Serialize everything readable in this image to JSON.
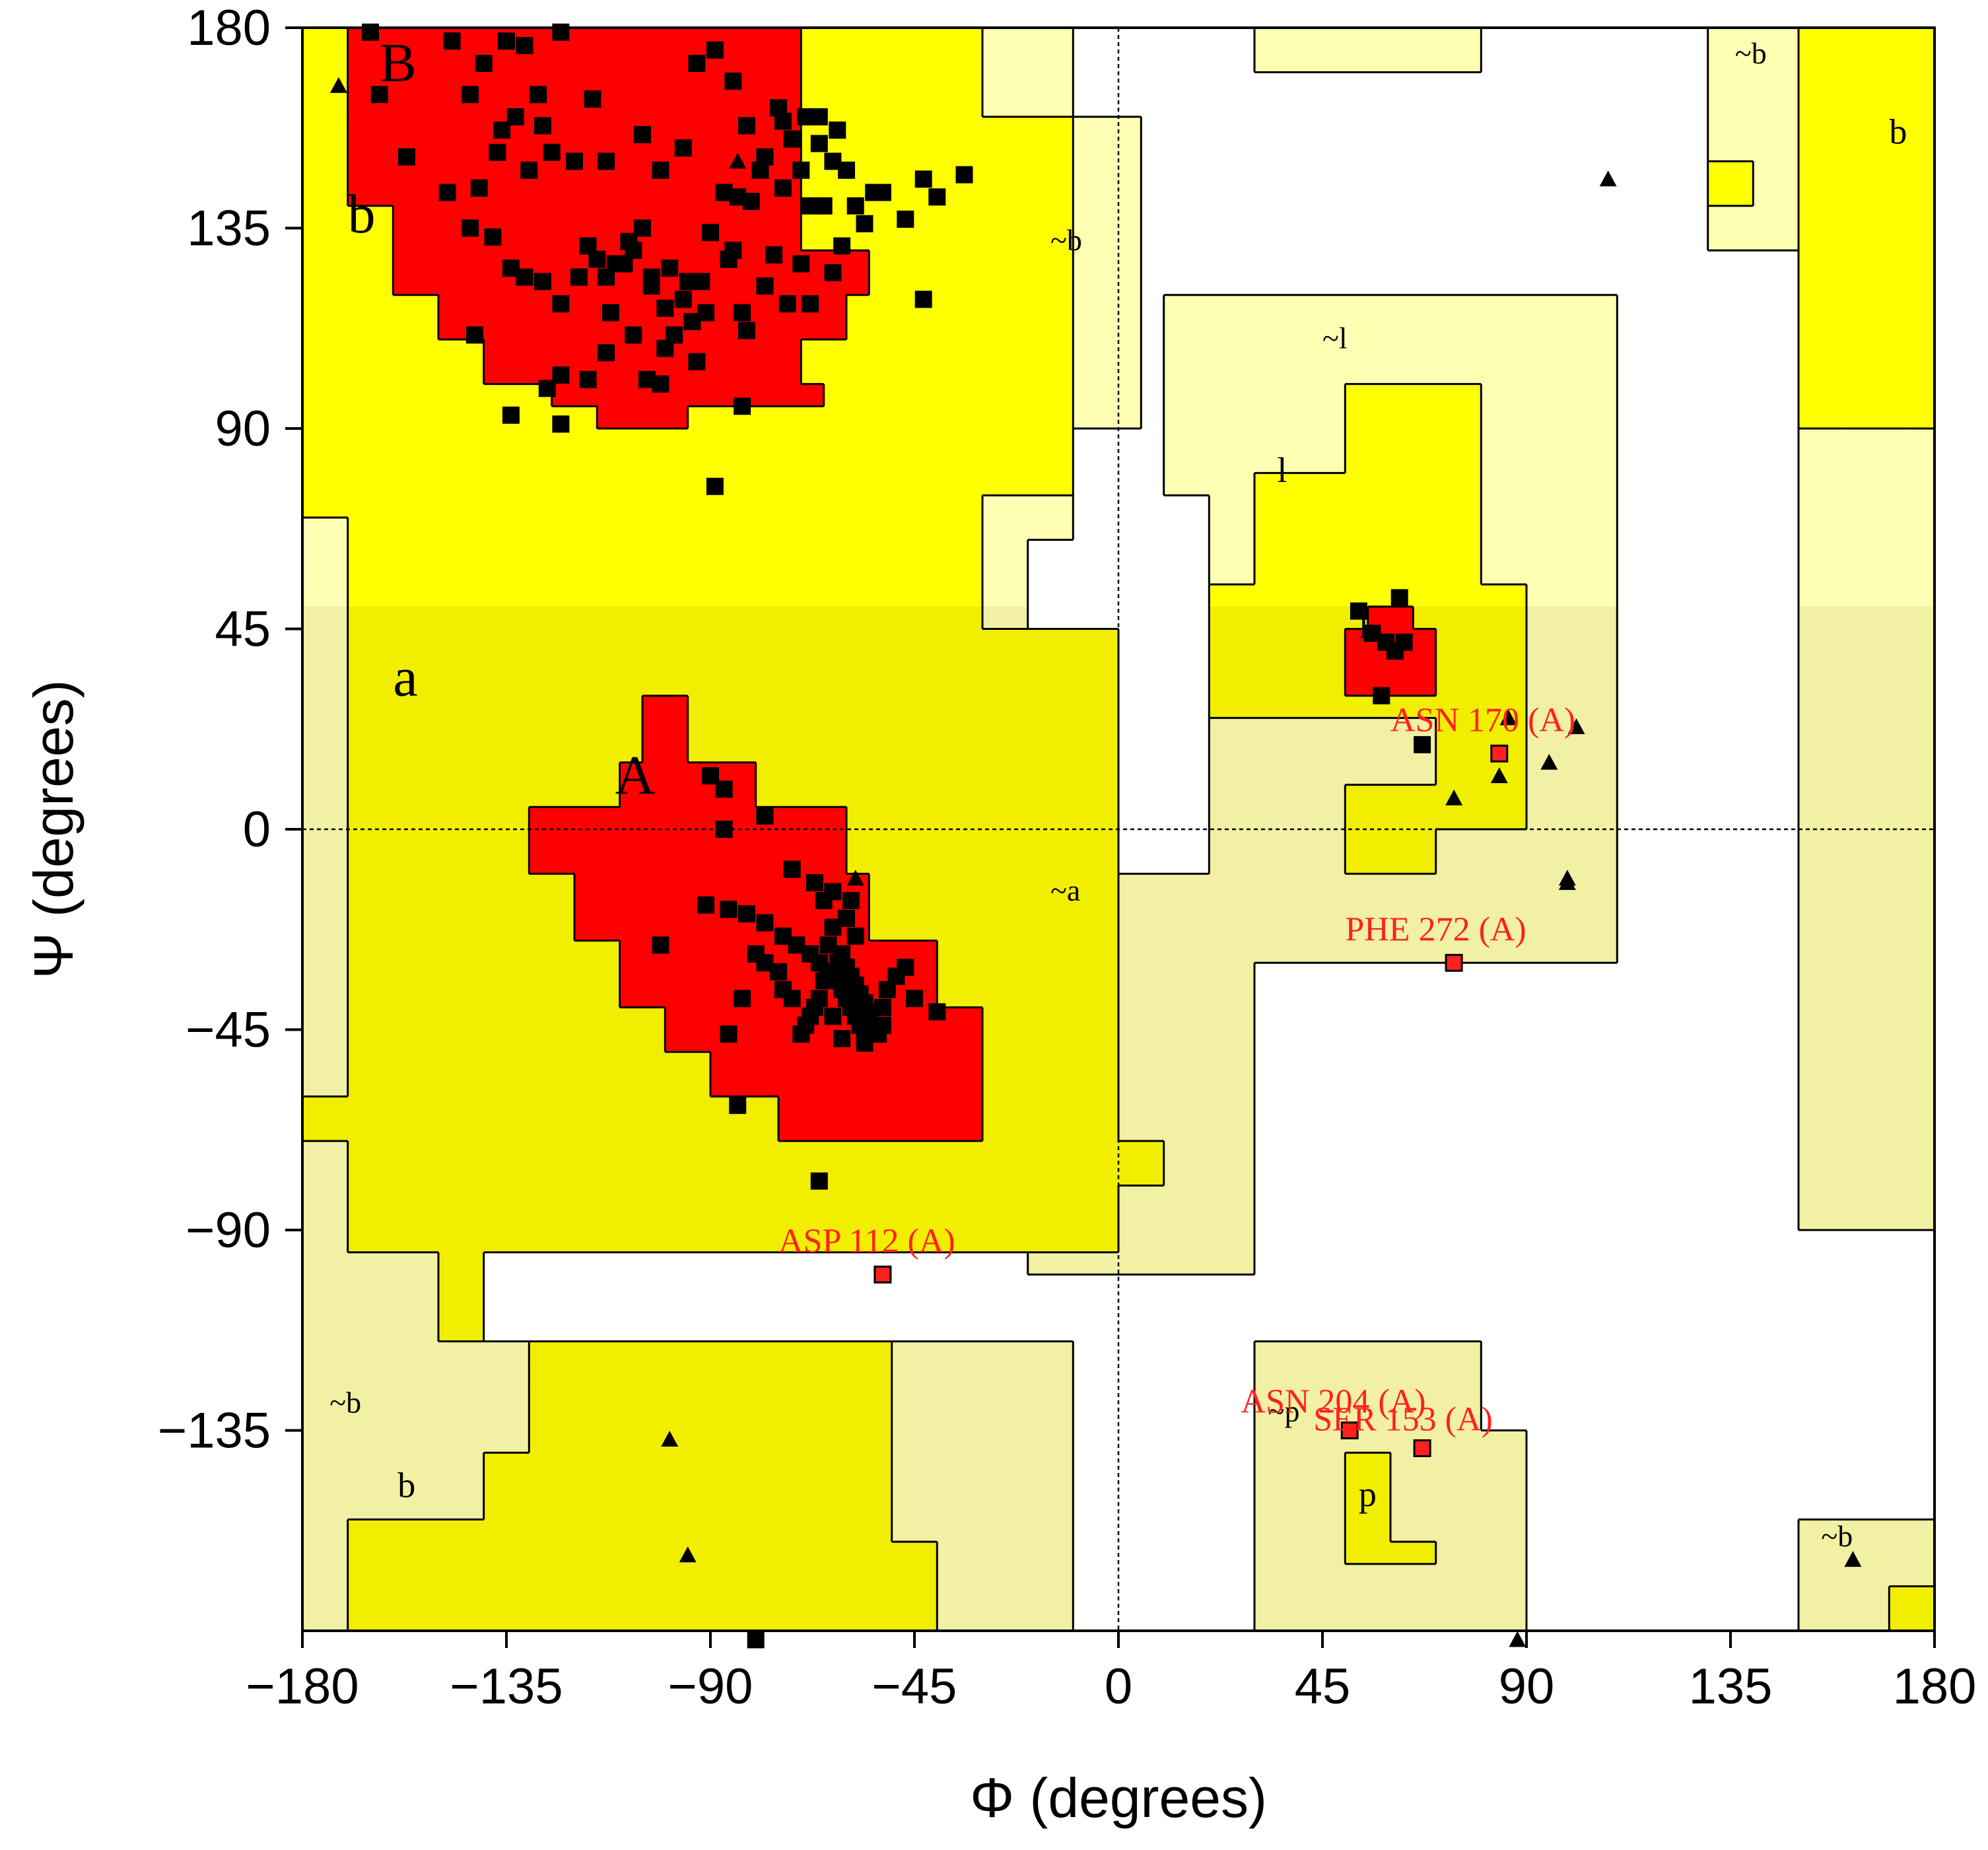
{
  "chart_data": {
    "type": "scatter",
    "title": "",
    "xlabel": "Φ (degrees)",
    "ylabel": "Ψ (degrees)",
    "xlim": [
      -180,
      180
    ],
    "ylim": [
      -180,
      180
    ],
    "xticks": [
      "−180",
      "−135",
      "−90",
      "−45",
      "0",
      "45",
      "90",
      "135",
      "180"
    ],
    "yticks": [
      "180",
      "135",
      "90",
      "45",
      "0",
      "−45",
      "−90",
      "−135"
    ],
    "colors": {
      "core": "#ff0000",
      "allowed": "#ffff00",
      "allowed_pale": "#f2ee00",
      "generous": "#ffffb4",
      "generous_pale": "#f1f0a4",
      "outlier": "#ff2020",
      "marker": "#000000"
    },
    "region_labels": [
      {
        "text": "B",
        "phi": -163,
        "psi": 168,
        "size": "large"
      },
      {
        "text": "b",
        "phi": -170,
        "psi": 134,
        "size": "large"
      },
      {
        "text": "a",
        "phi": -160,
        "psi": 30,
        "size": "large"
      },
      {
        "text": "A",
        "phi": -111,
        "psi": 8,
        "size": "large"
      },
      {
        "text": "~b",
        "phi": -15,
        "psi": 130,
        "size": "small"
      },
      {
        "text": "~l",
        "phi": 45,
        "psi": 108,
        "size": "small"
      },
      {
        "text": "l",
        "phi": 35,
        "psi": 78,
        "size": "medium"
      },
      {
        "text": "l",
        "phi": 53,
        "psi": 43,
        "size": "medium"
      },
      {
        "text": "~a",
        "phi": -15,
        "psi": -16,
        "size": "small"
      },
      {
        "text": "~b",
        "phi": 136,
        "psi": 172,
        "size": "small"
      },
      {
        "text": "b",
        "phi": 170,
        "psi": 154,
        "size": "medium"
      },
      {
        "text": "~b",
        "phi": -174,
        "psi": -131,
        "size": "small"
      },
      {
        "text": "b",
        "phi": -159,
        "psi": -150,
        "size": "medium"
      },
      {
        "text": "~p",
        "phi": 33,
        "psi": -133,
        "size": "small"
      },
      {
        "text": "p",
        "phi": 53,
        "psi": -152,
        "size": "medium"
      },
      {
        "text": "~b",
        "phi": 155,
        "psi": -161,
        "size": "small"
      }
    ],
    "outliers": [
      {
        "label": "ASN 170 (A)",
        "phi": 84,
        "psi": 17,
        "label_phi": 60,
        "label_psi": 22
      },
      {
        "label": "PHE 272 (A)",
        "phi": 74,
        "psi": -30,
        "label_phi": 50,
        "label_psi": -25
      },
      {
        "label": "ASP 112 (A)",
        "phi": -52,
        "psi": -100,
        "label_phi": -75,
        "label_psi": -95
      },
      {
        "label": "ASN 204 (A)",
        "phi": 51,
        "psi": -135,
        "label_phi": 27,
        "label_psi": -131
      },
      {
        "label": "SER 153 (A)",
        "phi": 67,
        "psi": -139,
        "label_phi": 43,
        "label_psi": -135
      }
    ],
    "series": [
      {
        "marker": "square",
        "points": [
          [
            -165,
            179
          ],
          [
            -163,
            165
          ],
          [
            -157,
            151
          ],
          [
            -147,
            177
          ],
          [
            -143,
            165
          ],
          [
            -140,
            172
          ],
          [
            -135,
            177
          ],
          [
            -131,
            176
          ],
          [
            -123,
            179
          ],
          [
            -136,
            157
          ],
          [
            -133,
            160
          ],
          [
            -128,
            165
          ],
          [
            -127,
            158
          ],
          [
            -130,
            148
          ],
          [
            -141,
            144
          ],
          [
            -137,
            152
          ],
          [
            -125,
            152
          ],
          [
            -120,
            150
          ],
          [
            -116,
            164
          ],
          [
            -113,
            150
          ],
          [
            -105,
            156
          ],
          [
            -101,
            148
          ],
          [
            -96,
            153
          ],
          [
            -93,
            172
          ],
          [
            -89,
            175
          ],
          [
            -85,
            168
          ],
          [
            -82,
            158
          ],
          [
            -78,
            151
          ],
          [
            -75,
            162
          ],
          [
            -72,
            155
          ],
          [
            -69,
            160
          ],
          [
            -66,
            154
          ],
          [
            -68,
            140
          ],
          [
            -74,
            144
          ],
          [
            -79,
            148
          ],
          [
            -84,
            142
          ],
          [
            -90,
            134
          ],
          [
            -95,
            123
          ],
          [
            -99,
            126
          ],
          [
            -103,
            122
          ],
          [
            -107,
            130
          ],
          [
            -111,
            127
          ],
          [
            -115,
            128
          ],
          [
            -119,
            124
          ],
          [
            -123,
            118
          ],
          [
            -127,
            123
          ],
          [
            -131,
            124
          ],
          [
            -134,
            126
          ],
          [
            -138,
            133
          ],
          [
            -143,
            135
          ],
          [
            -148,
            143
          ],
          [
            -142,
            111
          ],
          [
            -126,
            99
          ],
          [
            -117,
            101
          ],
          [
            -113,
            107
          ],
          [
            -107,
            111
          ],
          [
            -104,
            101
          ],
          [
            -101,
            100
          ],
          [
            -100,
            108
          ],
          [
            -94,
            114
          ],
          [
            -91,
            116
          ],
          [
            -83,
            116
          ],
          [
            -82,
            112
          ],
          [
            -78,
            122
          ],
          [
            -73,
            118
          ],
          [
            -68,
            118
          ],
          [
            -63,
            125
          ],
          [
            -61,
            131
          ],
          [
            -58,
            140
          ],
          [
            -54,
            143
          ],
          [
            -52,
            143
          ],
          [
            -47,
            137
          ],
          [
            -43,
            146
          ],
          [
            -40,
            142
          ],
          [
            -34,
            147
          ],
          [
            -43,
            119
          ],
          [
            -134,
            93
          ],
          [
            -123,
            91
          ],
          [
            -123,
            102
          ],
          [
            -119,
            124
          ],
          [
            -112,
            116
          ],
          [
            -108,
            132
          ],
          [
            -103,
            124
          ],
          [
            -98,
            111
          ],
          [
            -93,
            105
          ],
          [
            -89,
            77
          ],
          [
            -83,
            95
          ],
          [
            -86,
            128
          ],
          [
            -87,
            143
          ],
          [
            -81,
            141
          ],
          [
            -76,
            129
          ],
          [
            -70,
            127
          ],
          [
            -65,
            140
          ],
          [
            -63,
            150
          ],
          [
            -60,
            148
          ],
          [
            -56,
            136
          ],
          [
            -74,
            159
          ],
          [
            -70,
            148
          ],
          [
            -66,
            160
          ],
          [
            -62,
            157
          ],
          [
            -117,
            131
          ],
          [
            -113,
            124
          ],
          [
            -109,
            127
          ],
          [
            -105,
            135
          ],
          [
            -100,
            117
          ],
          [
            -96,
            119
          ],
          [
            -92,
            123
          ],
          [
            -85,
            130
          ],
          [
            -90,
            12
          ],
          [
            -87,
            9
          ],
          [
            -78,
            3
          ],
          [
            -87,
            0
          ],
          [
            -72,
            -9
          ],
          [
            -67,
            -12
          ],
          [
            -63,
            -14
          ],
          [
            -59,
            -16
          ],
          [
            -91,
            -17
          ],
          [
            -86,
            -18
          ],
          [
            -82,
            -19
          ],
          [
            -78,
            -21
          ],
          [
            -74,
            -24
          ],
          [
            -71,
            -26
          ],
          [
            -68,
            -28
          ],
          [
            -66,
            -30
          ],
          [
            -64,
            -32
          ],
          [
            -62,
            -34
          ],
          [
            -61,
            -36
          ],
          [
            -60,
            -38
          ],
          [
            -59,
            -40
          ],
          [
            -58,
            -42
          ],
          [
            -57,
            -44
          ],
          [
            -56,
            -46
          ],
          [
            -63,
            -22
          ],
          [
            -64,
            -26
          ],
          [
            -65,
            -34
          ],
          [
            -66,
            -38
          ],
          [
            -67,
            -40
          ],
          [
            -68,
            -42
          ],
          [
            -69,
            -44
          ],
          [
            -70,
            -46
          ],
          [
            -61,
            -28
          ],
          [
            -60,
            -31
          ],
          [
            -59,
            -33
          ],
          [
            -58,
            -35
          ],
          [
            -57,
            -37
          ],
          [
            -56,
            -39
          ],
          [
            -55,
            -41
          ],
          [
            -54,
            -44
          ],
          [
            -53,
            -46
          ],
          [
            -52,
            -40
          ],
          [
            -51,
            -36
          ],
          [
            -49,
            -33
          ],
          [
            -47,
            -31
          ],
          [
            -45,
            -38
          ],
          [
            -75,
            -32
          ],
          [
            -78,
            -30
          ],
          [
            -80,
            -28
          ],
          [
            -83,
            -38
          ],
          [
            -86,
            -46
          ],
          [
            -101,
            -26
          ],
          [
            -84,
            -62
          ],
          [
            -66,
            -79
          ],
          [
            -40,
            -41
          ],
          [
            -74,
            -36
          ],
          [
            -72,
            -38
          ],
          [
            -62,
            -30
          ],
          [
            -63,
            -42
          ],
          [
            -60,
            -20
          ],
          [
            -58,
            -24
          ],
          [
            -65,
            -16
          ],
          [
            -61,
            -47
          ],
          [
            -56,
            -48
          ],
          [
            -52,
            -44
          ],
          [
            -80,
            -182
          ],
          [
            53,
            49
          ],
          [
            56,
            44
          ],
          [
            59,
            42
          ],
          [
            61,
            40
          ],
          [
            63,
            42
          ],
          [
            62,
            52
          ],
          [
            58,
            30
          ],
          [
            67,
            19
          ]
        ]
      },
      {
        "marker": "triangle",
        "points": [
          [
            -172,
            167
          ],
          [
            -84,
            150
          ],
          [
            -58,
            -11
          ],
          [
            108,
            146
          ],
          [
            86,
            25
          ],
          [
            101,
            23
          ],
          [
            95,
            15
          ],
          [
            84,
            12
          ],
          [
            74,
            7
          ],
          [
            99,
            -11
          ],
          [
            99,
            -12
          ],
          [
            -99,
            -137
          ],
          [
            -95,
            -163
          ],
          [
            162,
            -164
          ],
          [
            88,
            -182
          ]
        ]
      }
    ]
  }
}
